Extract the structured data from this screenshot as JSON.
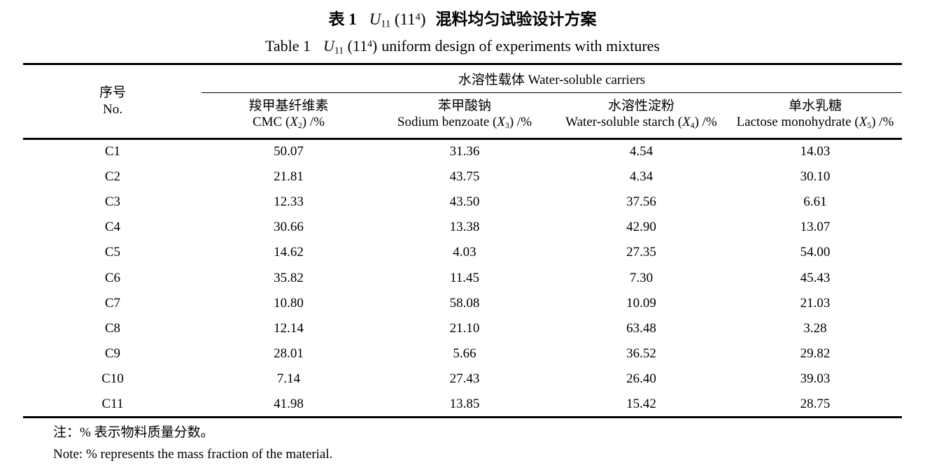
{
  "colors": {
    "background": "#ffffff",
    "text": "#000000",
    "rule": "#000000"
  },
  "titles": {
    "zh": {
      "label": "表 1",
      "formula": {
        "u": "U",
        "u_sub": "11",
        "paren": " (11",
        "exp": "4",
        "close": ")"
      },
      "rest": "混料均匀试验设计方案"
    },
    "en": {
      "label": "Table 1",
      "formula": {
        "u": "U",
        "u_sub": "11",
        "paren": " (11",
        "exp": "4",
        "close": ")"
      },
      "rest": "uniform design of experiments with mixtures"
    }
  },
  "table": {
    "group_header": "水溶性载体 Water-soluble carriers",
    "no_column": {
      "zh": "序号",
      "en": "No."
    },
    "columns": [
      {
        "zh": "羧甲基纤维素",
        "en_pre": "CMC (",
        "var": "X",
        "var_sub": "2",
        "en_post": ") /%"
      },
      {
        "zh": "苯甲酸钠",
        "en_pre": "Sodium benzoate (",
        "var": "X",
        "var_sub": "3",
        "en_post": ") /%"
      },
      {
        "zh": "水溶性淀粉",
        "en_pre": "Water-soluble starch (",
        "var": "X",
        "var_sub": "4",
        "en_post": ") /%"
      },
      {
        "zh": "单水乳糖",
        "en_pre": "Lactose monohydrate (",
        "var": "X",
        "var_sub": "5",
        "en_post": ") /%"
      }
    ],
    "rows": [
      {
        "no": "C1",
        "values": [
          "50.07",
          "31.36",
          "4.54",
          "14.03"
        ]
      },
      {
        "no": "C2",
        "values": [
          "21.81",
          "43.75",
          "4.34",
          "30.10"
        ]
      },
      {
        "no": "C3",
        "values": [
          "12.33",
          "43.50",
          "37.56",
          "6.61"
        ]
      },
      {
        "no": "C4",
        "values": [
          "30.66",
          "13.38",
          "42.90",
          "13.07"
        ]
      },
      {
        "no": "C5",
        "values": [
          "14.62",
          "4.03",
          "27.35",
          "54.00"
        ]
      },
      {
        "no": "C6",
        "values": [
          "35.82",
          "11.45",
          "7.30",
          "45.43"
        ]
      },
      {
        "no": "C7",
        "values": [
          "10.80",
          "58.08",
          "10.09",
          "21.03"
        ]
      },
      {
        "no": "C8",
        "values": [
          "12.14",
          "21.10",
          "63.48",
          "3.28"
        ]
      },
      {
        "no": "C9",
        "values": [
          "28.01",
          "5.66",
          "36.52",
          "29.82"
        ]
      },
      {
        "no": "C10",
        "values": [
          "7.14",
          "27.43",
          "26.40",
          "39.03"
        ]
      },
      {
        "no": "C11",
        "values": [
          "41.98",
          "13.85",
          "15.42",
          "28.75"
        ]
      }
    ]
  },
  "notes": {
    "zh": "注：% 表示物料质量分数。",
    "en": "Note: % represents the mass fraction of the material."
  }
}
